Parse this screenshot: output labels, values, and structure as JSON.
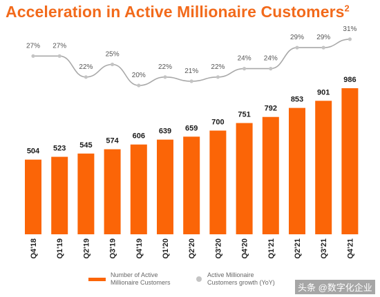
{
  "title": "Acceleration in Active Millionaire Customers",
  "title_footnote": "2",
  "colors": {
    "accent": "#f26a1b",
    "bar": "#fb6507",
    "line": "#a8a8a8",
    "dot": "#c4c4c4"
  },
  "legend": {
    "bar_label": "Number of Active Millionaire Customers",
    "line_label": "Active Millionaire Customers growth (YoY)"
  },
  "watermark": "头条 @数字化企业",
  "chart_data": [
    {
      "type": "bar",
      "categories": [
        "Q4'18",
        "Q1'19",
        "Q2'19",
        "Q3'19",
        "Q4'19",
        "Q1'20",
        "Q2'20",
        "Q3'20",
        "Q4'20",
        "Q1'21",
        "Q2'21",
        "Q3'21",
        "Q4'21"
      ],
      "series": [
        {
          "name": "Number of Active Millionaire Customers",
          "values": [
            504,
            523,
            545,
            574,
            606,
            639,
            659,
            700,
            751,
            792,
            853,
            901,
            986
          ]
        }
      ],
      "data_labels": [
        "504",
        "523",
        "545",
        "574",
        "606",
        "639",
        "659",
        "700",
        "751",
        "792",
        "853",
        "901",
        "986"
      ],
      "ylim": [
        0,
        1000
      ]
    },
    {
      "type": "line",
      "categories": [
        "Q4'18",
        "Q1'19",
        "Q2'19",
        "Q3'19",
        "Q4'19",
        "Q1'20",
        "Q2'20",
        "Q3'20",
        "Q4'20",
        "Q1'21",
        "Q2'21",
        "Q3'21",
        "Q4'21"
      ],
      "series": [
        {
          "name": "Active Millionaire Customers growth (YoY)",
          "values": [
            27,
            27,
            22,
            25,
            20,
            22,
            21,
            22,
            24,
            24,
            29,
            29,
            31
          ]
        }
      ],
      "data_labels": [
        "27%",
        "27%",
        "22%",
        "25%",
        "20%",
        "22%",
        "21%",
        "22%",
        "24%",
        "24%",
        "29%",
        "29%",
        "31%"
      ],
      "ylim": [
        15,
        35
      ]
    }
  ]
}
